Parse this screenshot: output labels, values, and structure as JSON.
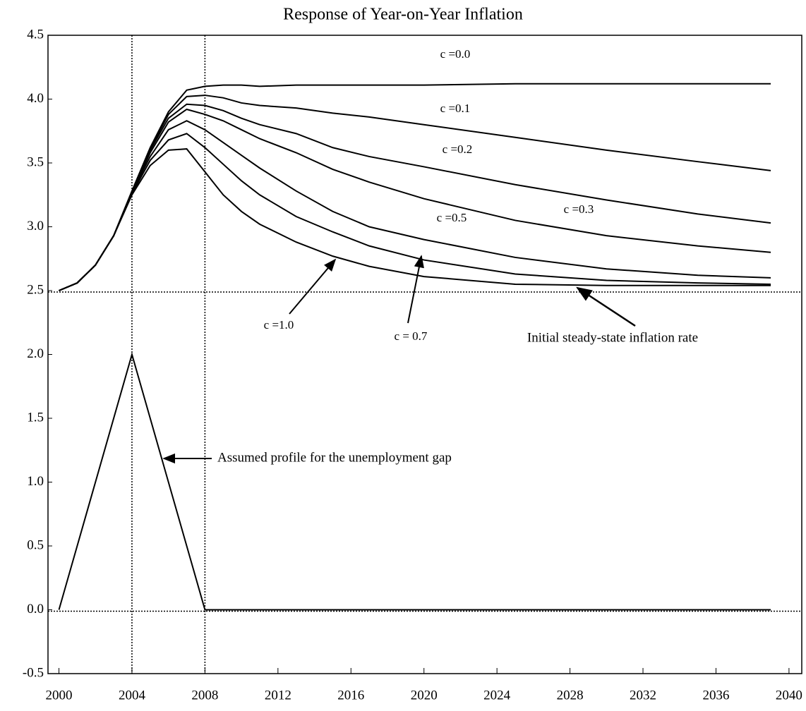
{
  "chart_data": {
    "type": "line",
    "title": "Response of Year-on-Year Inflation",
    "x": [
      2000,
      2001,
      2002,
      2003,
      2004,
      2005,
      2006,
      2007,
      2008,
      2009,
      2010,
      2011,
      2013,
      2015,
      2017,
      2020,
      2025,
      2030,
      2035,
      2039
    ],
    "series": [
      {
        "name": "c =0.0",
        "color": "#000000",
        "values": [
          2.5,
          2.56,
          2.7,
          2.93,
          3.28,
          3.62,
          3.9,
          4.07,
          4.1,
          4.11,
          4.11,
          4.1,
          4.11,
          4.11,
          4.11,
          4.11,
          4.12,
          4.12,
          4.12,
          4.12
        ]
      },
      {
        "name": "c =0.1",
        "color": "#000000",
        "values": [
          2.5,
          2.56,
          2.7,
          2.93,
          3.28,
          3.61,
          3.88,
          4.02,
          4.03,
          4.01,
          3.97,
          3.95,
          3.93,
          3.89,
          3.86,
          3.8,
          3.7,
          3.6,
          3.51,
          3.44
        ]
      },
      {
        "name": "c =0.2",
        "color": "#000000",
        "values": [
          2.5,
          2.56,
          2.7,
          2.93,
          3.27,
          3.6,
          3.85,
          3.96,
          3.95,
          3.91,
          3.85,
          3.8,
          3.73,
          3.62,
          3.55,
          3.47,
          3.33,
          3.21,
          3.1,
          3.03
        ]
      },
      {
        "name": "c =0.3",
        "color": "#000000",
        "values": [
          2.5,
          2.56,
          2.7,
          2.93,
          3.27,
          3.58,
          3.82,
          3.92,
          3.88,
          3.83,
          3.76,
          3.69,
          3.58,
          3.45,
          3.35,
          3.22,
          3.05,
          2.93,
          2.85,
          2.8
        ]
      },
      {
        "name": "c =0.5",
        "color": "#000000",
        "values": [
          2.5,
          2.56,
          2.7,
          2.93,
          3.27,
          3.55,
          3.76,
          3.83,
          3.76,
          3.66,
          3.56,
          3.46,
          3.28,
          3.12,
          3.0,
          2.9,
          2.76,
          2.67,
          2.62,
          2.6
        ]
      },
      {
        "name": "c = 0.7",
        "color": "#000000",
        "values": [
          2.5,
          2.56,
          2.7,
          2.93,
          3.26,
          3.52,
          3.68,
          3.73,
          3.62,
          3.49,
          3.36,
          3.25,
          3.08,
          2.96,
          2.85,
          2.74,
          2.63,
          2.58,
          2.56,
          2.55
        ]
      },
      {
        "name": "c =1.0",
        "color": "#000000",
        "values": [
          2.5,
          2.56,
          2.7,
          2.93,
          3.25,
          3.48,
          3.6,
          3.61,
          3.43,
          3.25,
          3.12,
          3.02,
          2.88,
          2.77,
          2.69,
          2.61,
          2.55,
          2.54,
          2.54,
          2.54
        ]
      },
      {
        "name": "Assumed profile for the unemployment gap",
        "color": "#000000",
        "values": [
          0,
          0.5,
          1,
          1.5,
          2,
          1.5,
          1,
          0.5,
          0,
          0,
          0,
          0,
          0,
          0,
          0,
          0,
          0,
          0,
          0,
          0
        ]
      }
    ],
    "reference_lines": {
      "y": [
        2.5,
        0
      ],
      "x": [
        2004,
        2008
      ]
    },
    "annotations": [
      "Initial steady-state inflation rate"
    ],
    "xlim": [
      1999.4,
      2040.7
    ],
    "xticks": [
      2000,
      2004,
      2008,
      2012,
      2016,
      2020,
      2024,
      2028,
      2032,
      2036,
      2040
    ],
    "ylim": [
      -0.5,
      4.5
    ],
    "yticks": [
      {
        "value": -0.5,
        "label": "-0.5"
      },
      {
        "value": 0,
        "label": "0.0"
      },
      {
        "value": 0.5,
        "label": "0.5"
      },
      {
        "value": 1,
        "label": "1.0"
      },
      {
        "value": 1.5,
        "label": "1.5"
      },
      {
        "value": 2,
        "label": "2.0"
      },
      {
        "value": 2.5,
        "label": "2.5"
      },
      {
        "value": 3,
        "label": "3.0"
      },
      {
        "value": 3.5,
        "label": "3.5"
      },
      {
        "value": 4,
        "label": "4.0"
      },
      {
        "value": 4.5,
        "label": "4.5"
      }
    ],
    "grid": false
  }
}
